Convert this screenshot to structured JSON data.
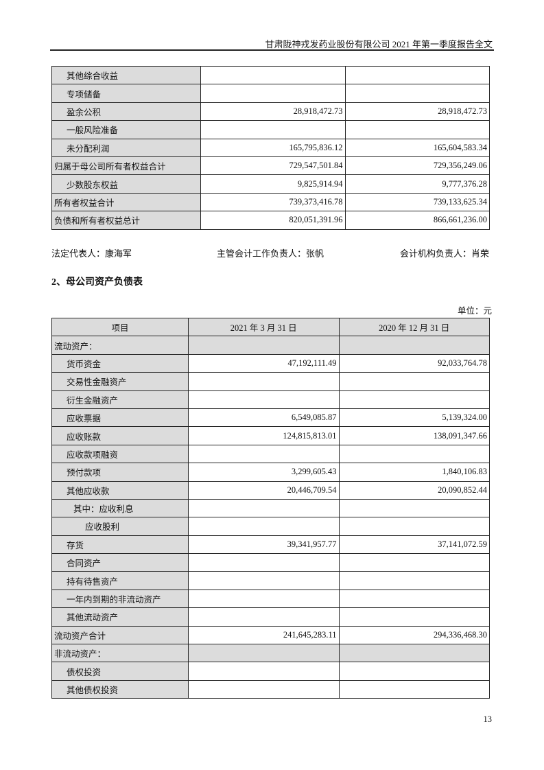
{
  "header": {
    "title": "甘肃陇神戎发药业股份有限公司 2021 年第一季度报告全文"
  },
  "table1": {
    "rows": [
      {
        "label": "其他综合收益",
        "indent": 1,
        "v1": "",
        "v2": ""
      },
      {
        "label": "专项储备",
        "indent": 1,
        "v1": "",
        "v2": ""
      },
      {
        "label": "盈余公积",
        "indent": 1,
        "v1": "28,918,472.73",
        "v2": "28,918,472.73"
      },
      {
        "label": "一般风险准备",
        "indent": 1,
        "v1": "",
        "v2": ""
      },
      {
        "label": "未分配利润",
        "indent": 1,
        "v1": "165,795,836.12",
        "v2": "165,604,583.34"
      },
      {
        "label": "归属于母公司所有者权益合计",
        "indent": 0,
        "v1": "729,547,501.84",
        "v2": "729,356,249.06"
      },
      {
        "label": "少数股东权益",
        "indent": 1,
        "v1": "9,825,914.94",
        "v2": "9,777,376.28"
      },
      {
        "label": "所有者权益合计",
        "indent": 0,
        "v1": "739,373,416.78",
        "v2": "739,133,625.34"
      },
      {
        "label": "负债和所有者权益总计",
        "indent": 0,
        "v1": "820,051,391.96",
        "v2": "866,661,236.00"
      }
    ]
  },
  "signatures": {
    "legal_rep": "法定代表人：康海军",
    "accounting_head": "主管会计工作负责人：张帆",
    "accounting_dept_head": "会计机构负责人：肖荣"
  },
  "section_title": "2、母公司资产负债表",
  "unit": "单位：元",
  "table2": {
    "columns": [
      "项目",
      "2021 年 3 月 31 日",
      "2020 年 12 月 31 日"
    ],
    "rows": [
      {
        "label": "流动资产：",
        "indent": 0,
        "section": true,
        "v1": "",
        "v2": ""
      },
      {
        "label": "货币资金",
        "indent": 1,
        "v1": "47,192,111.49",
        "v2": "92,033,764.78"
      },
      {
        "label": "交易性金融资产",
        "indent": 1,
        "v1": "",
        "v2": ""
      },
      {
        "label": "衍生金融资产",
        "indent": 1,
        "v1": "",
        "v2": ""
      },
      {
        "label": "应收票据",
        "indent": 1,
        "v1": "6,549,085.87",
        "v2": "5,139,324.00"
      },
      {
        "label": "应收账款",
        "indent": 1,
        "v1": "124,815,813.01",
        "v2": "138,091,347.66"
      },
      {
        "label": "应收款项融资",
        "indent": 1,
        "v1": "",
        "v2": ""
      },
      {
        "label": "预付款项",
        "indent": 1,
        "v1": "3,299,605.43",
        "v2": "1,840,106.83"
      },
      {
        "label": "其他应收款",
        "indent": 1,
        "v1": "20,446,709.54",
        "v2": "20,090,852.44"
      },
      {
        "label": "其中：应收利息",
        "indent": 2,
        "v1": "",
        "v2": ""
      },
      {
        "label": "应收股利",
        "indent": 3,
        "v1": "",
        "v2": ""
      },
      {
        "label": "存货",
        "indent": 1,
        "v1": "39,341,957.77",
        "v2": "37,141,072.59"
      },
      {
        "label": "合同资产",
        "indent": 1,
        "v1": "",
        "v2": ""
      },
      {
        "label": "持有待售资产",
        "indent": 1,
        "v1": "",
        "v2": ""
      },
      {
        "label": "一年内到期的非流动资产",
        "indent": 1,
        "v1": "",
        "v2": ""
      },
      {
        "label": "其他流动资产",
        "indent": 1,
        "v1": "",
        "v2": ""
      },
      {
        "label": "流动资产合计",
        "indent": 0,
        "v1": "241,645,283.11",
        "v2": "294,336,468.30"
      },
      {
        "label": "非流动资产：",
        "indent": 0,
        "section": true,
        "v1": "",
        "v2": ""
      },
      {
        "label": "债权投资",
        "indent": 1,
        "v1": "",
        "v2": ""
      },
      {
        "label": "其他债权投资",
        "indent": 1,
        "v1": "",
        "v2": ""
      }
    ]
  },
  "page_number": "13"
}
